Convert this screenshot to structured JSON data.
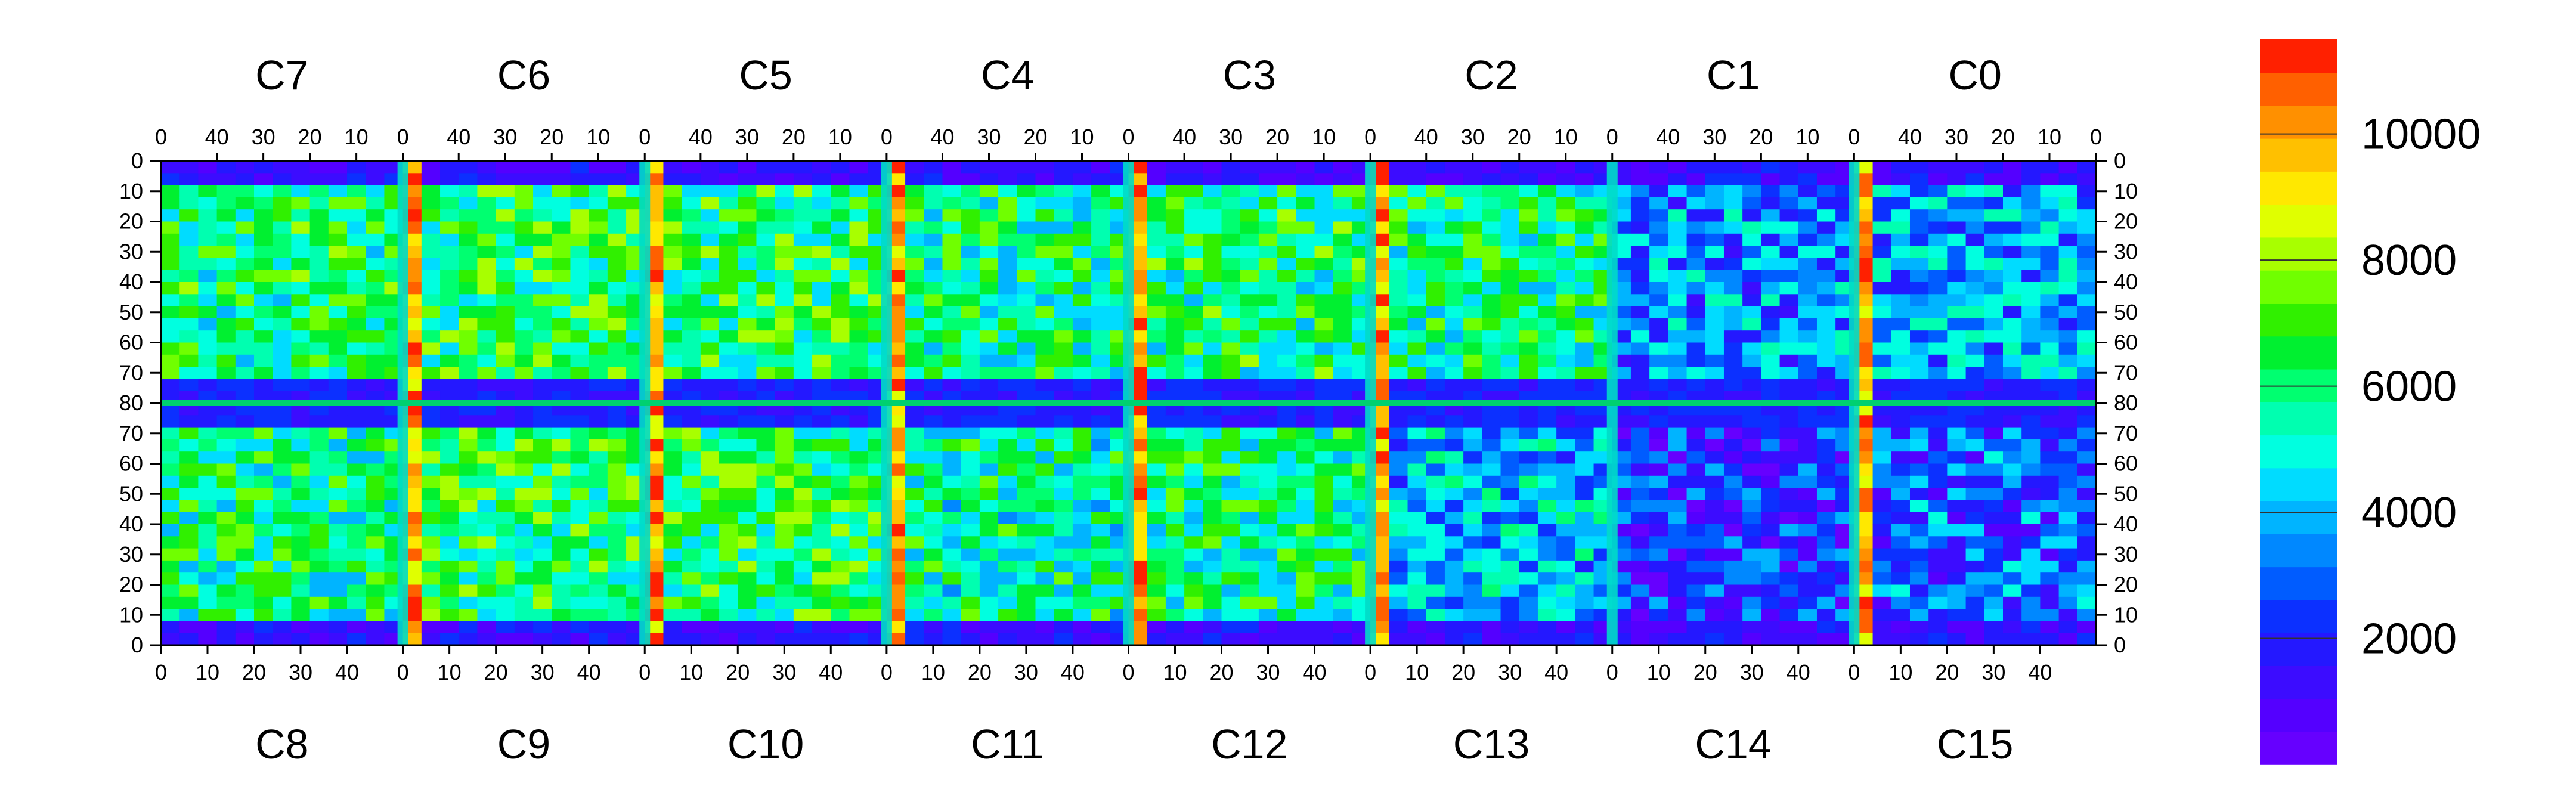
{
  "chart_data": {
    "type": "heatmap",
    "title": "",
    "top_chip_labels": [
      "C7",
      "C6",
      "C5",
      "C4",
      "C3",
      "C2",
      "C1",
      "C0"
    ],
    "bottom_chip_labels": [
      "C8",
      "C9",
      "C10",
      "C11",
      "C12",
      "C13",
      "C14",
      "C15"
    ],
    "top_x_tick_labels": [
      "40",
      "30",
      "20",
      "10",
      "0"
    ],
    "bottom_x_tick_labels": [
      "0",
      "10",
      "20",
      "30",
      "40"
    ],
    "y_tick_labels": [
      "0",
      "10",
      "20",
      "30",
      "40",
      "50",
      "60",
      "70",
      "80",
      "70",
      "60",
      "50",
      "40",
      "30",
      "20",
      "10",
      "0"
    ],
    "columns_per_chip": 52,
    "rows_per_half": 80,
    "colorbar": {
      "range": [
        0,
        11500
      ],
      "tick_labels": [
        "2000",
        "4000",
        "6000",
        "8000",
        "10000"
      ],
      "tick_values": [
        2000,
        4000,
        6000,
        8000,
        10000
      ],
      "colors": [
        "#6600ff",
        "#5400ff",
        "#3c0cff",
        "#2418ff",
        "#0c30ff",
        "#005cff",
        "#0088ff",
        "#00b4ff",
        "#00dcff",
        "#00ffe0",
        "#00ffb0",
        "#00ff70",
        "#00f030",
        "#30f000",
        "#70ff00",
        "#a8ff00",
        "#e0ff00",
        "#ffe800",
        "#ffc000",
        "#ff9000",
        "#ff6000",
        "#ff2000"
      ]
    },
    "chips": [
      {
        "name": "C7",
        "level": 0.52,
        "high_edge": false
      },
      {
        "name": "C6",
        "level": 0.55,
        "high_edge": true
      },
      {
        "name": "C5",
        "level": 0.55,
        "high_edge": true
      },
      {
        "name": "C4",
        "level": 0.5,
        "high_edge": true
      },
      {
        "name": "C3",
        "level": 0.52,
        "high_edge": true
      },
      {
        "name": "C2",
        "level": 0.5,
        "high_edge": true
      },
      {
        "name": "C1",
        "level": 0.3,
        "high_edge": false
      },
      {
        "name": "C0",
        "level": 0.32,
        "high_edge": true
      },
      {
        "name": "C8",
        "level": 0.5,
        "high_edge": false
      },
      {
        "name": "C9",
        "level": 0.55,
        "high_edge": true
      },
      {
        "name": "C10",
        "level": 0.55,
        "high_edge": true
      },
      {
        "name": "C11",
        "level": 0.48,
        "high_edge": true
      },
      {
        "name": "C12",
        "level": 0.5,
        "high_edge": true
      },
      {
        "name": "C13",
        "level": 0.35,
        "high_edge": true
      },
      {
        "name": "C14",
        "level": 0.18,
        "high_edge": false
      },
      {
        "name": "C15",
        "level": 0.25,
        "high_edge": true
      }
    ]
  }
}
